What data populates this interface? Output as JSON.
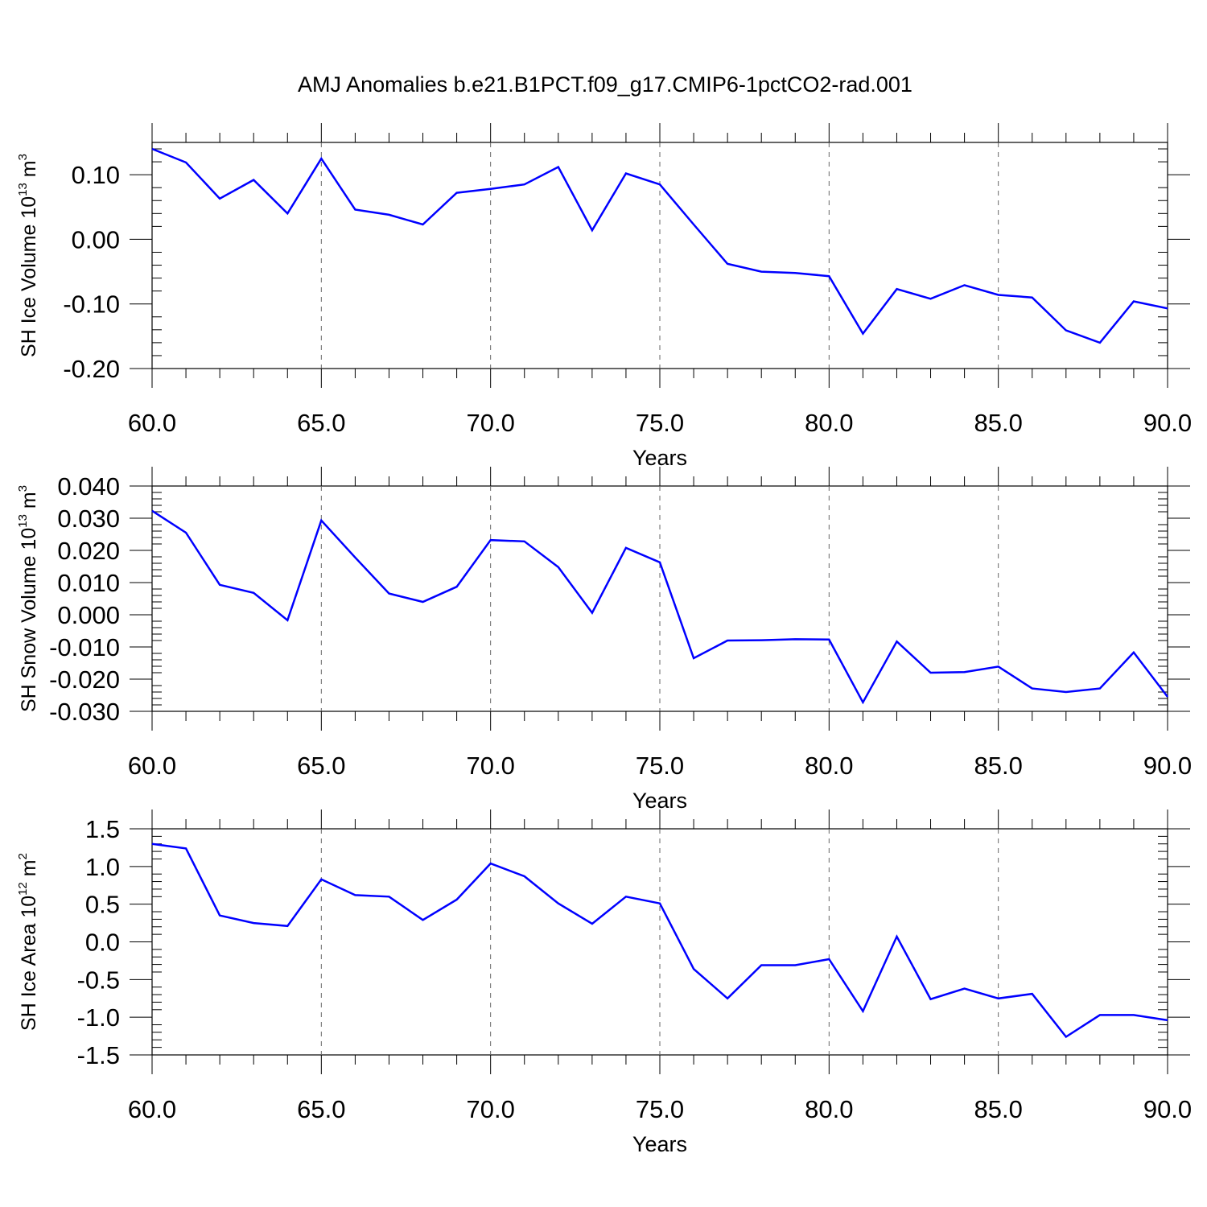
{
  "title": "AMJ Anomalies b.e21.B1PCT.f09_g17.CMIP6-1pctCO2-rad.001",
  "line_color": "#0000ff",
  "chart_data": [
    {
      "type": "line",
      "ylabel_main": "SH Ice Volume 10",
      "ylabel_exp": "13",
      "ylabel_unit": " m",
      "ylabel_unit_exp": "3",
      "xlabel": "Years",
      "xlim": [
        60,
        90
      ],
      "ylim": [
        -0.2,
        0.15
      ],
      "xticks": [
        "60.0",
        "65.0",
        "70.0",
        "75.0",
        "80.0",
        "85.0",
        "90.0"
      ],
      "yticks": [
        "0.10",
        "0.00",
        "-0.10",
        "-0.20"
      ],
      "ytick_values": [
        0.1,
        0.0,
        -0.1,
        -0.2
      ],
      "x": [
        60,
        61,
        62,
        63,
        64,
        65,
        66,
        67,
        68,
        69,
        70,
        71,
        72,
        73,
        74,
        75,
        76,
        77,
        78,
        79,
        80,
        81,
        82,
        83,
        84,
        85,
        86,
        87,
        88,
        89,
        90
      ],
      "values": [
        0.14,
        0.119,
        0.063,
        0.092,
        0.04,
        0.125,
        0.046,
        0.038,
        0.023,
        0.072,
        0.078,
        0.085,
        0.112,
        0.014,
        0.102,
        0.085,
        0.023,
        -0.038,
        -0.05,
        -0.052,
        -0.057,
        -0.146,
        -0.077,
        -0.092,
        -0.071,
        -0.086,
        -0.09,
        -0.141,
        -0.16,
        -0.096,
        -0.107
      ]
    },
    {
      "type": "line",
      "ylabel_main": "SH Snow Volume 10",
      "ylabel_exp": "13",
      "ylabel_unit": " m",
      "ylabel_unit_exp": "3",
      "xlabel": "Years",
      "xlim": [
        60,
        90
      ],
      "ylim": [
        -0.03,
        0.04
      ],
      "xticks": [
        "60.0",
        "65.0",
        "70.0",
        "75.0",
        "80.0",
        "85.0",
        "90.0"
      ],
      "yticks": [
        "0.040",
        "0.030",
        "0.020",
        "0.010",
        "0.000",
        "-0.010",
        "-0.020",
        "-0.030"
      ],
      "ytick_values": [
        0.04,
        0.03,
        0.02,
        0.01,
        0.0,
        -0.01,
        -0.02,
        -0.03
      ],
      "x": [
        60,
        61,
        62,
        63,
        64,
        65,
        66,
        67,
        68,
        69,
        70,
        71,
        72,
        73,
        74,
        75,
        76,
        77,
        78,
        79,
        80,
        81,
        82,
        83,
        84,
        85,
        86,
        87,
        88,
        89,
        90
      ],
      "values": [
        0.0323,
        0.0255,
        0.0093,
        0.0068,
        -0.0017,
        0.0293,
        0.0178,
        0.0066,
        0.004,
        0.0087,
        0.0232,
        0.0228,
        0.0148,
        0.0006,
        0.0208,
        0.0163,
        -0.0135,
        -0.008,
        -0.0079,
        -0.0076,
        -0.0077,
        -0.0272,
        -0.0083,
        -0.018,
        -0.0178,
        -0.0161,
        -0.0229,
        -0.024,
        -0.0229,
        -0.0117,
        -0.0255
      ]
    },
    {
      "type": "line",
      "ylabel_main": "SH Ice Area 10",
      "ylabel_exp": "12",
      "ylabel_unit": " m",
      "ylabel_unit_exp": "2",
      "xlabel": "Years",
      "xlim": [
        60,
        90
      ],
      "ylim": [
        -1.5,
        1.5
      ],
      "xticks": [
        "60.0",
        "65.0",
        "70.0",
        "75.0",
        "80.0",
        "85.0",
        "90.0"
      ],
      "yticks": [
        "1.5",
        "1.0",
        "0.5",
        "0.0",
        "-0.5",
        "-1.0",
        "-1.5"
      ],
      "ytick_values": [
        1.5,
        1.0,
        0.5,
        0.0,
        -0.5,
        -1.0,
        -1.5
      ],
      "x": [
        60,
        61,
        62,
        63,
        64,
        65,
        66,
        67,
        68,
        69,
        70,
        71,
        72,
        73,
        74,
        75,
        76,
        77,
        78,
        79,
        80,
        81,
        82,
        83,
        84,
        85,
        86,
        87,
        88,
        89,
        90
      ],
      "values": [
        1.3,
        1.24,
        0.35,
        0.25,
        0.21,
        0.83,
        0.62,
        0.6,
        0.29,
        0.56,
        1.04,
        0.87,
        0.51,
        0.24,
        0.6,
        0.51,
        -0.36,
        -0.75,
        -0.31,
        -0.31,
        -0.23,
        -0.92,
        0.07,
        -0.76,
        -0.62,
        -0.75,
        -0.69,
        -1.26,
        -0.97,
        -0.97,
        -1.04
      ]
    }
  ]
}
